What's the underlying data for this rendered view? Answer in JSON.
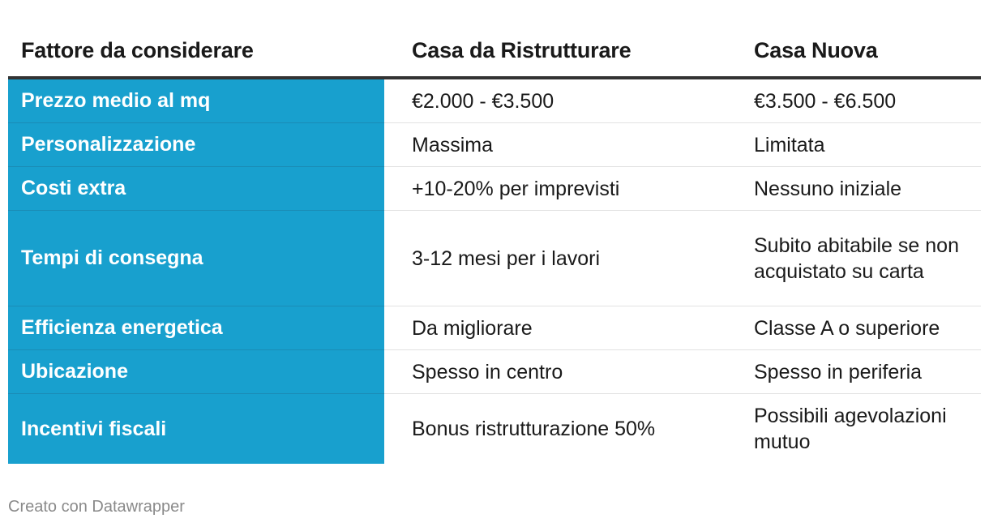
{
  "table": {
    "headers": [
      "Fattore da considerare",
      "Casa da Ristrutturare",
      "Casa Nuova"
    ],
    "rows": [
      {
        "factor": "Prezzo medio al mq",
        "ristrutturare": "€2.000 - €3.500",
        "nuova": "€3.500 - €6.500"
      },
      {
        "factor": "Personalizzazione",
        "ristrutturare": "Massima",
        "nuova": "Limitata"
      },
      {
        "factor": "Costi extra",
        "ristrutturare": "+10-20% per imprevisti",
        "nuova": "Nessuno iniziale"
      },
      {
        "factor": "Tempi di consegna",
        "ristrutturare": "3-12 mesi per i lavori",
        "nuova": "Subito abitabile se non acquistato su carta"
      },
      {
        "factor": "Efficienza energetica",
        "ristrutturare": "Da migliorare",
        "nuova": "Classe A o superiore"
      },
      {
        "factor": "Ubicazione",
        "ristrutturare": "Spesso in centro",
        "nuova": "Spesso in periferia"
      },
      {
        "factor": "Incentivi fiscali",
        "ristrutturare": "Bonus ristrutturazione 50%",
        "nuova": "Possibili agevolazioni mutuo"
      }
    ]
  },
  "footer": {
    "credit": "Creato con Datawrapper"
  },
  "colors": {
    "highlight_column": "#18a0ce",
    "header_rule": "#333333"
  }
}
